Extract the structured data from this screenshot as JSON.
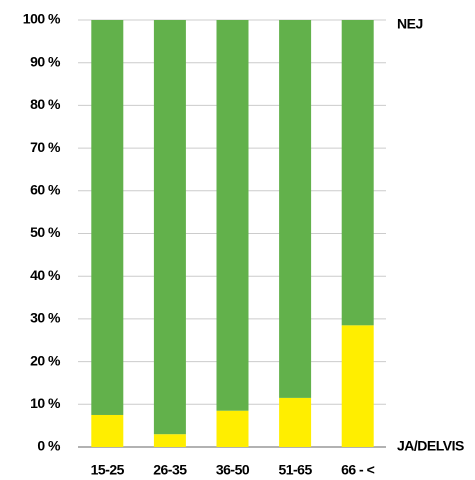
{
  "chart_data": {
    "type": "stacked_bar",
    "categories": [
      "15-25",
      "26-35",
      "36-50",
      "51-65",
      "66 - <"
    ],
    "series": [
      {
        "name": "JA/DELVIS",
        "color": "#ffee00",
        "values": [
          7.5,
          3,
          8.5,
          11.5,
          28.5
        ]
      },
      {
        "name": "NEJ",
        "color": "#62b14b",
        "values": [
          92.5,
          97,
          91.5,
          88.5,
          71.5
        ]
      }
    ],
    "ylim": [
      0,
      100
    ],
    "yticks": [
      {
        "value": 0,
        "label": "0 %"
      },
      {
        "value": 10,
        "label": "10 %"
      },
      {
        "value": 20,
        "label": "20 %"
      },
      {
        "value": 30,
        "label": "30 %"
      },
      {
        "value": 40,
        "label": "40 %"
      },
      {
        "value": 50,
        "label": "50 %"
      },
      {
        "value": 60,
        "label": "60 %"
      },
      {
        "value": 70,
        "label": "70 %"
      },
      {
        "value": 80,
        "label": "80 %"
      },
      {
        "value": 90,
        "label": "90 %"
      },
      {
        "value": 100,
        "label": "100 %"
      }
    ],
    "grid": true
  }
}
